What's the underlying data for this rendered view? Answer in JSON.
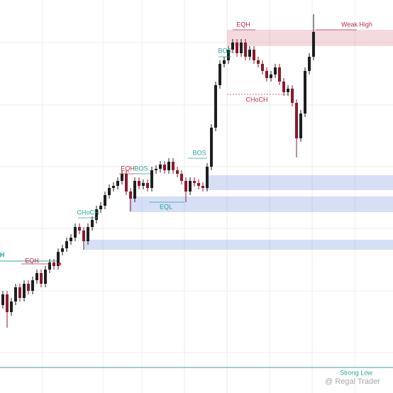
{
  "chart_data": {
    "type": "candlestick",
    "ylim": [
      0,
      554
    ],
    "bull_color": "#1e1e1e",
    "bear_color": "#8b1a2b",
    "open": [
      124,
      139,
      114,
      129,
      149,
      134,
      154,
      144,
      159,
      169,
      154,
      174,
      184,
      179,
      199,
      204,
      214,
      219,
      234,
      229,
      214,
      234,
      244,
      259,
      264,
      279,
      289,
      292,
      299,
      309,
      284,
      274,
      299,
      292,
      296,
      289,
      314,
      316,
      322,
      314,
      326,
      314,
      309,
      299,
      284,
      299,
      296,
      292,
      289,
      319,
      374,
      434,
      464,
      469,
      484,
      494,
      479,
      494,
      474,
      484,
      469,
      464,
      454,
      444,
      449,
      459,
      439,
      424,
      429,
      409,
      359,
      394,
      454,
      474
    ],
    "high": [
      144,
      144,
      134,
      154,
      154,
      159,
      159,
      164,
      174,
      174,
      179,
      189,
      189,
      204,
      209,
      219,
      224,
      239,
      239,
      234,
      239,
      249,
      264,
      269,
      284,
      294,
      297,
      304,
      314,
      314,
      289,
      304,
      304,
      301,
      301,
      319,
      321,
      327,
      327,
      331,
      331,
      319,
      314,
      304,
      304,
      304,
      301,
      297,
      324,
      379,
      439,
      469,
      474,
      489,
      499,
      499,
      499,
      499,
      489,
      489,
      474,
      469,
      459,
      454,
      464,
      464,
      444,
      434,
      434,
      414,
      399,
      459,
      479,
      534
    ],
    "low": [
      119,
      92,
      109,
      124,
      129,
      129,
      139,
      139,
      154,
      149,
      149,
      169,
      174,
      174,
      194,
      199,
      209,
      214,
      224,
      202,
      209,
      229,
      239,
      254,
      259,
      274,
      284,
      287,
      294,
      279,
      256,
      269,
      287,
      287,
      284,
      284,
      309,
      311,
      309,
      309,
      309,
      304,
      294,
      269,
      279,
      291,
      287,
      284,
      284,
      314,
      369,
      429,
      459,
      464,
      479,
      474,
      474,
      469,
      469,
      464,
      459,
      449,
      439,
      439,
      444,
      434,
      419,
      419,
      404,
      332,
      354,
      389,
      449,
      469
    ],
    "close": [
      139,
      114,
      129,
      149,
      134,
      154,
      144,
      159,
      169,
      154,
      174,
      184,
      179,
      199,
      204,
      214,
      219,
      234,
      229,
      214,
      234,
      244,
      259,
      264,
      279,
      289,
      292,
      299,
      309,
      284,
      274,
      299,
      292,
      296,
      289,
      314,
      316,
      322,
      314,
      326,
      314,
      309,
      299,
      284,
      299,
      296,
      292,
      289,
      319,
      374,
      434,
      464,
      469,
      484,
      494,
      479,
      494,
      474,
      484,
      469,
      464,
      454,
      444,
      449,
      459,
      439,
      424,
      429,
      409,
      359,
      394,
      454,
      474,
      509
    ],
    "zones": [
      {
        "low": 489,
        "high": 512,
        "color": "rgba(214,120,140,0.28)"
      },
      {
        "low": 286,
        "high": 307,
        "color": "rgba(120,150,225,0.30)"
      },
      {
        "low": 255,
        "high": 277,
        "color": "rgba(120,150,225,0.30)"
      },
      {
        "low": 202,
        "high": 216,
        "color": "rgba(120,150,225,0.30)"
      }
    ],
    "levels": [
      {
        "value": 36,
        "color": "#3aa6a6"
      },
      {
        "value": 186,
        "color": "#3aa6a6"
      }
    ],
    "annotations": [
      "EQH",
      "Weak High",
      "BOS",
      "CHoCH",
      "BOS",
      "EQH",
      "BOS",
      "CHoCH",
      "EQL",
      "EQH",
      "H",
      "Strong Low"
    ],
    "watermark": "@ Regal Trader"
  }
}
